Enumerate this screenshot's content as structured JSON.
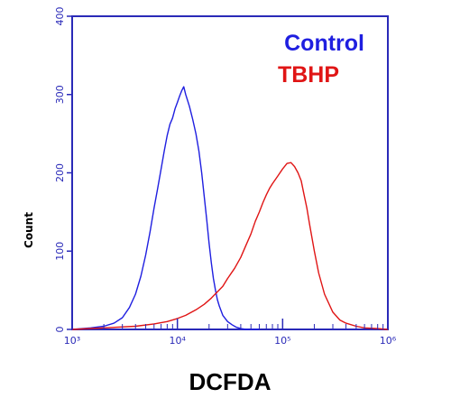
{
  "chart_data": {
    "type": "line",
    "xlabel": "DCFDA",
    "ylabel": "Count",
    "x_scale": "log",
    "xlim": [
      1000,
      1000000
    ],
    "ylim": [
      0,
      400
    ],
    "x_tick_labels": [
      "10³",
      "10⁴",
      "10⁵",
      "10⁶"
    ],
    "x_tick_values": [
      1000,
      10000,
      100000,
      1000000
    ],
    "y_tick_labels": [
      "0",
      "100",
      "200",
      "300",
      "400"
    ],
    "y_tick_values": [
      0,
      100,
      200,
      300,
      400
    ],
    "grid": false,
    "legend_position": "top-right",
    "colors": {
      "axes": "#2a2ab8",
      "control": "#1f1fe0",
      "tbhp": "#e01515"
    },
    "series": [
      {
        "name": "Control",
        "color": "#1f1fe0",
        "x": [
          1000,
          1500,
          2000,
          2500,
          3000,
          3500,
          4000,
          4500,
          5000,
          5500,
          6000,
          6500,
          7000,
          7500,
          8000,
          8500,
          9000,
          9500,
          10000,
          10500,
          11000,
          11500,
          12000,
          13000,
          14000,
          15000,
          16000,
          17000,
          18000,
          19000,
          20000,
          21000,
          22000,
          23000,
          24000,
          25000,
          27000,
          30000,
          33000,
          36000,
          40000,
          45000,
          50000,
          60000
        ],
        "y": [
          0,
          2,
          4,
          8,
          15,
          28,
          45,
          68,
          95,
          125,
          155,
          180,
          205,
          228,
          248,
          262,
          270,
          282,
          290,
          298,
          305,
          310,
          300,
          285,
          268,
          250,
          228,
          200,
          170,
          140,
          110,
          85,
          65,
          50,
          38,
          30,
          18,
          10,
          6,
          3,
          1,
          0,
          0,
          0
        ]
      },
      {
        "name": "TBHP",
        "color": "#e01515",
        "x": [
          1000,
          2000,
          4000,
          6000,
          8000,
          10000,
          12000,
          15000,
          18000,
          21000,
          24000,
          27000,
          30000,
          35000,
          40000,
          45000,
          50000,
          55000,
          60000,
          65000,
          70000,
          75000,
          80000,
          90000,
          100000,
          110000,
          120000,
          130000,
          140000,
          150000,
          160000,
          170000,
          180000,
          200000,
          220000,
          250000,
          300000,
          350000,
          400000,
          500000,
          600000,
          800000,
          1000000
        ],
        "y": [
          0,
          2,
          4,
          7,
          10,
          14,
          18,
          25,
          32,
          40,
          48,
          55,
          65,
          78,
          92,
          108,
          122,
          138,
          150,
          162,
          172,
          180,
          186,
          196,
          205,
          212,
          213,
          208,
          200,
          190,
          172,
          155,
          135,
          100,
          72,
          45,
          22,
          12,
          8,
          4,
          2,
          1,
          0
        ]
      }
    ]
  }
}
